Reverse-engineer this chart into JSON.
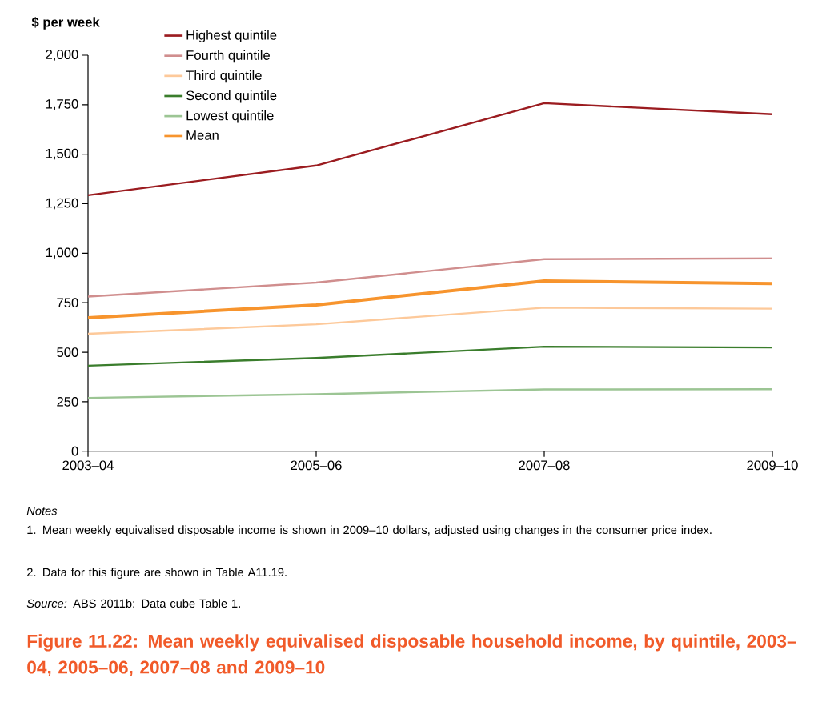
{
  "chart_data": {
    "type": "line",
    "title": "Figure 11.22: Mean weekly equivalised disposable household income, by quintile, 2003–04, 2005–06, 2007–08 and 2009–10",
    "ylabel": "$ per week",
    "categories": [
      "2003–04",
      "2005–06",
      "2007–08",
      "2009–10"
    ],
    "series": [
      {
        "name": "Highest quintile",
        "color": "#9b1c20",
        "values": [
          1293,
          1443,
          1758,
          1702
        ]
      },
      {
        "name": "Fourth quintile",
        "color": "#d08e8e",
        "values": [
          781,
          852,
          970,
          974
        ]
      },
      {
        "name": "Third quintile",
        "color": "#fdc99a",
        "values": [
          593,
          641,
          725,
          720
        ]
      },
      {
        "name": "Second quintile",
        "color": "#3a7d2c",
        "values": [
          432,
          471,
          528,
          524
        ]
      },
      {
        "name": "Lowest quintile",
        "color": "#9cc594",
        "values": [
          269,
          288,
          312,
          313
        ]
      },
      {
        "name": "Mean",
        "color": "#f7942d",
        "values": [
          674,
          739,
          860,
          847
        ]
      }
    ],
    "ylim": [
      0,
      2000
    ],
    "yticks": [
      0,
      250,
      500,
      750,
      {
        "value": 1000,
        "label": "1,000"
      },
      {
        "value": 1250,
        "label": "1,250"
      },
      {
        "value": 1500,
        "label": "1,500"
      },
      {
        "value": 1750,
        "label": "1,750"
      },
      {
        "value": 2000,
        "label": "2,000"
      }
    ],
    "legend": "top left",
    "annotations": [
      "Notes",
      "1. Mean weekly equivalised disposable income is shown in 2009–10 dollars, adjusted using changes in the consumer price index.",
      "2. Data for this figure are shown in Table A11.19.",
      "*Source:* ABS 2011b: Data cube Table 1."
    ]
  }
}
